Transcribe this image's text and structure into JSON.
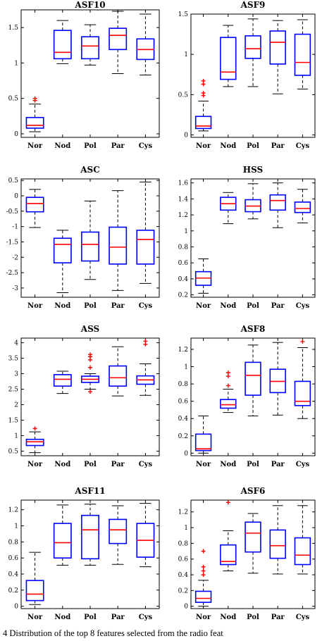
{
  "caption": "4 Distribution of the top 8 features selected from the radio feat",
  "chart_data": [
    {
      "type": "box",
      "title": "ASF10",
      "categories": [
        "Nor",
        "Nod",
        "Pol",
        "Par",
        "Cys"
      ],
      "ylim": [
        -0.05,
        1.75
      ],
      "yticks": [
        0,
        0.5,
        1,
        1.5
      ],
      "boxes": [
        {
          "wl": 0.03,
          "q1": 0.08,
          "med": 0.12,
          "q3": 0.23,
          "wh": 0.42,
          "outliers": [
            0.47,
            0.5
          ]
        },
        {
          "wl": 0.99,
          "q1": 1.06,
          "med": 1.15,
          "q3": 1.46,
          "wh": 1.6,
          "outliers": []
        },
        {
          "wl": 0.97,
          "q1": 1.06,
          "med": 1.24,
          "q3": 1.37,
          "wh": 1.54,
          "outliers": []
        },
        {
          "wl": 0.85,
          "q1": 1.19,
          "med": 1.39,
          "q3": 1.49,
          "wh": 1.73,
          "outliers": []
        },
        {
          "wl": 0.83,
          "q1": 1.05,
          "med": 1.19,
          "q3": 1.34,
          "wh": 1.69,
          "outliers": []
        }
      ]
    },
    {
      "type": "box",
      "title": "ASF9",
      "categories": [
        "Nor",
        "Nod",
        "Pol",
        "Par",
        "Cys"
      ],
      "ylim": [
        -0.03,
        1.5
      ],
      "yticks": [
        0,
        0.5,
        1,
        1.5
      ],
      "boxes": [
        {
          "wl": 0.05,
          "q1": 0.08,
          "med": 0.11,
          "q3": 0.23,
          "wh": 0.42,
          "outliers": [
            0.49,
            0.52,
            0.63,
            0.67
          ]
        },
        {
          "wl": 0.6,
          "q1": 0.69,
          "med": 0.78,
          "q3": 1.21,
          "wh": 1.36,
          "outliers": []
        },
        {
          "wl": 0.6,
          "q1": 0.95,
          "med": 1.07,
          "q3": 1.23,
          "wh": 1.44,
          "outliers": []
        },
        {
          "wl": 0.51,
          "q1": 0.88,
          "med": 1.15,
          "q3": 1.29,
          "wh": 1.42,
          "outliers": []
        },
        {
          "wl": 0.57,
          "q1": 0.74,
          "med": 0.9,
          "q3": 1.25,
          "wh": 1.43,
          "outliers": []
        }
      ]
    },
    {
      "type": "box",
      "title": "ASC",
      "categories": [
        "Nor",
        "Nod",
        "Pol",
        "Par",
        "Cys"
      ],
      "ylim": [
        -3.3,
        0.55
      ],
      "yticks": [
        0.5,
        0,
        -0.5,
        -1,
        -1.5,
        -2,
        -2.5,
        -3
      ],
      "boxes": [
        {
          "wl": -1.03,
          "q1": -0.52,
          "med": -0.25,
          "q3": -0.05,
          "wh": 0.21,
          "outliers": []
        },
        {
          "wl": -3.15,
          "q1": -2.18,
          "med": -1.58,
          "q3": -1.38,
          "wh": -1.12,
          "outliers": []
        },
        {
          "wl": -2.72,
          "q1": -2.12,
          "med": -1.58,
          "q3": -1.18,
          "wh": -0.17,
          "outliers": []
        },
        {
          "wl": -3.08,
          "q1": -2.22,
          "med": -1.67,
          "q3": -1.02,
          "wh": 0.17,
          "outliers": []
        },
        {
          "wl": -2.85,
          "q1": -2.22,
          "med": -1.42,
          "q3": -1.12,
          "wh": 0.45,
          "outliers": []
        }
      ]
    },
    {
      "type": "box",
      "title": "HSS",
      "categories": [
        "Nor",
        "Nod",
        "Pol",
        "Par",
        "Cys"
      ],
      "ylim": [
        0.17,
        1.65
      ],
      "yticks": [
        1.6,
        1.4,
        1.2,
        1,
        0.8,
        0.6,
        0.4,
        0.2
      ],
      "boxes": [
        {
          "wl": 0.22,
          "q1": 0.32,
          "med": 0.41,
          "q3": 0.49,
          "wh": 0.65,
          "outliers": []
        },
        {
          "wl": 1.09,
          "q1": 1.26,
          "med": 1.34,
          "q3": 1.42,
          "wh": 1.48,
          "outliers": []
        },
        {
          "wl": 1.15,
          "q1": 1.24,
          "med": 1.31,
          "q3": 1.39,
          "wh": 1.59,
          "outliers": []
        },
        {
          "wl": 1.04,
          "q1": 1.26,
          "med": 1.38,
          "q3": 1.45,
          "wh": 1.6,
          "outliers": []
        },
        {
          "wl": 1.1,
          "q1": 1.23,
          "med": 1.28,
          "q3": 1.36,
          "wh": 1.52,
          "outliers": []
        }
      ]
    },
    {
      "type": "box",
      "title": "ASS",
      "categories": [
        "Nor",
        "Nod",
        "Pol",
        "Par",
        "Cys"
      ],
      "ylim": [
        0.35,
        4.15
      ],
      "yticks": [
        4,
        3.5,
        3,
        2.5,
        2,
        1.5,
        1,
        0.5
      ],
      "boxes": [
        {
          "wl": 0.45,
          "q1": 0.68,
          "med": 0.8,
          "q3": 0.88,
          "wh": 1.12,
          "outliers": [
            1.23
          ]
        },
        {
          "wl": 2.36,
          "q1": 2.6,
          "med": 2.82,
          "q3": 2.97,
          "wh": 3.08,
          "outliers": []
        },
        {
          "wl": 2.5,
          "q1": 2.72,
          "med": 2.82,
          "q3": 2.92,
          "wh": 3.0,
          "outliers": [
            2.42,
            3.2,
            3.45,
            3.55,
            3.62
          ]
        },
        {
          "wl": 2.28,
          "q1": 2.6,
          "med": 2.87,
          "q3": 3.25,
          "wh": 3.87,
          "outliers": []
        },
        {
          "wl": 2.3,
          "q1": 2.66,
          "med": 2.8,
          "q3": 2.93,
          "wh": 3.32,
          "outliers": [
            3.95,
            4.05
          ]
        }
      ]
    },
    {
      "type": "box",
      "title": "ASF8",
      "categories": [
        "Nor",
        "Nod",
        "Pol",
        "Par",
        "Cys"
      ],
      "ylim": [
        -0.03,
        1.33
      ],
      "yticks": [
        1.2,
        1,
        0.8,
        0.6,
        0.4,
        0.2,
        0
      ],
      "boxes": [
        {
          "wl": 0.0,
          "q1": 0.03,
          "med": 0.05,
          "q3": 0.22,
          "wh": 0.43,
          "outliers": []
        },
        {
          "wl": 0.47,
          "q1": 0.52,
          "med": 0.56,
          "q3": 0.62,
          "wh": 0.74,
          "outliers": [
            0.78,
            0.89,
            0.93
          ]
        },
        {
          "wl": 0.43,
          "q1": 0.67,
          "med": 0.9,
          "q3": 1.05,
          "wh": 1.25,
          "outliers": []
        },
        {
          "wl": 0.44,
          "q1": 0.7,
          "med": 0.83,
          "q3": 0.97,
          "wh": 1.28,
          "outliers": []
        },
        {
          "wl": 0.4,
          "q1": 0.55,
          "med": 0.6,
          "q3": 0.83,
          "wh": 1.22,
          "outliers": [
            1.29
          ]
        }
      ]
    },
    {
      "type": "box",
      "title": "ASF11",
      "categories": [
        "Nor",
        "Nod",
        "Pol",
        "Par",
        "Cys"
      ],
      "ylim": [
        -0.03,
        1.32
      ],
      "yticks": [
        1.2,
        1,
        0.8,
        0.6,
        0.4,
        0.2,
        0
      ],
      "boxes": [
        {
          "wl": 0.02,
          "q1": 0.07,
          "med": 0.15,
          "q3": 0.32,
          "wh": 0.67,
          "outliers": []
        },
        {
          "wl": 0.51,
          "q1": 0.6,
          "med": 0.79,
          "q3": 1.03,
          "wh": 1.26,
          "outliers": []
        },
        {
          "wl": 0.51,
          "q1": 0.59,
          "med": 0.95,
          "q3": 1.13,
          "wh": 1.27,
          "outliers": []
        },
        {
          "wl": 0.52,
          "q1": 0.78,
          "med": 0.95,
          "q3": 1.08,
          "wh": 1.25,
          "outliers": []
        },
        {
          "wl": 0.49,
          "q1": 0.61,
          "med": 0.82,
          "q3": 1.03,
          "wh": 1.28,
          "outliers": []
        }
      ]
    },
    {
      "type": "box",
      "title": "ASF6",
      "categories": [
        "Nor",
        "Nod",
        "Pol",
        "Par",
        "Cys"
      ],
      "ylim": [
        -0.03,
        1.35
      ],
      "yticks": [
        1.2,
        1,
        0.8,
        0.6,
        0.4,
        0.2,
        0
      ],
      "boxes": [
        {
          "wl": 0.0,
          "q1": 0.05,
          "med": 0.1,
          "q3": 0.19,
          "wh": 0.33,
          "outliers": [
            0.4,
            0.45,
            0.5,
            0.7
          ]
        },
        {
          "wl": 0.45,
          "q1": 0.53,
          "med": 0.57,
          "q3": 0.78,
          "wh": 0.96,
          "outliers": [
            1.32
          ]
        },
        {
          "wl": 0.42,
          "q1": 0.69,
          "med": 0.93,
          "q3": 1.07,
          "wh": 1.18,
          "outliers": []
        },
        {
          "wl": 0.41,
          "q1": 0.61,
          "med": 0.77,
          "q3": 0.97,
          "wh": 1.28,
          "outliers": []
        },
        {
          "wl": 0.41,
          "q1": 0.53,
          "med": 0.65,
          "q3": 0.87,
          "wh": 1.28,
          "outliers": []
        }
      ]
    }
  ]
}
